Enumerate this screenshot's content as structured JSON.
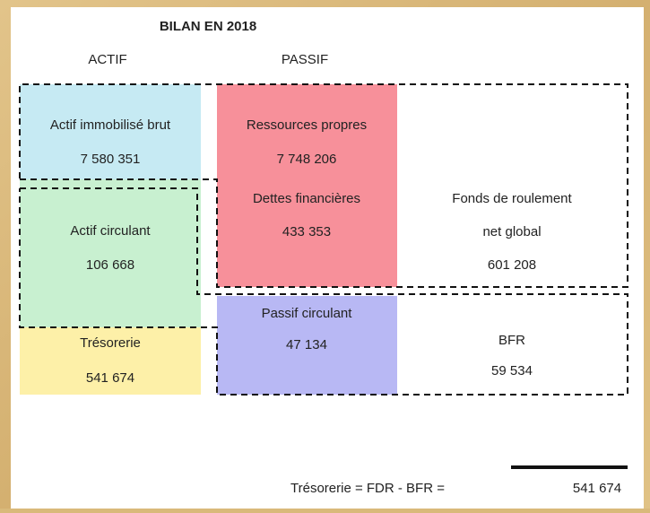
{
  "title": "BILAN EN 2018",
  "columns": {
    "actif": "ACTIF",
    "passif": "PASSIF"
  },
  "actif": {
    "immobilise": {
      "label": "Actif immobilisé brut",
      "value": "7 580 351"
    },
    "circulant": {
      "label": "Actif circulant",
      "value": "106 668"
    },
    "tresorerie": {
      "label": "Trésorerie",
      "value": "541 674"
    }
  },
  "passif": {
    "ressources": {
      "label": "Ressources propres",
      "value": "7 748 206"
    },
    "dettes": {
      "label": "Dettes financières",
      "value": "433 353"
    },
    "circulant": {
      "label": "Passif circulant",
      "value": "47 134"
    }
  },
  "fdr": {
    "label_line1": "Fonds de roulement",
    "label_line2": "net global",
    "value": "601 208"
  },
  "bfr": {
    "label": "BFR",
    "value": "59 534"
  },
  "formula": {
    "text": "Trésorerie = FDR  - BFR =",
    "result": "541 674"
  }
}
